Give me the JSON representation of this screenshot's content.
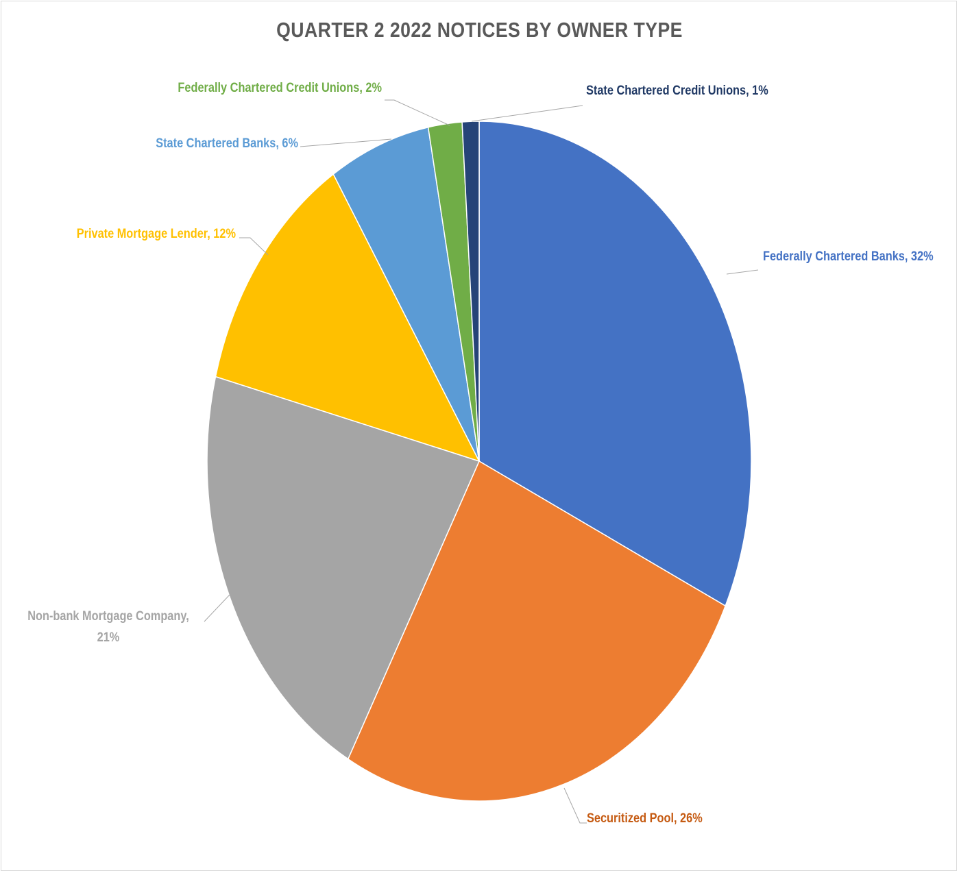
{
  "chart_data": {
    "type": "pie",
    "title": "QUARTER 2 2022 NOTICES BY OWNER TYPE",
    "slices": [
      {
        "label": "Federally Chartered Banks",
        "value": 32,
        "display": "Federally Chartered Banks, 32%",
        "color": "#4472C4",
        "label_color": "#4472C4"
      },
      {
        "label": "Securitized Pool",
        "value": 26,
        "display": "Securitized Pool, 26%",
        "color": "#ED7D31",
        "label_color": "#C55A11"
      },
      {
        "label": "Non-bank Mortgage Company",
        "value": 21,
        "display": "Non-bank Mortgage Company, 21%",
        "display_lines": [
          "Non-bank Mortgage Company,",
          "21%"
        ],
        "color": "#A5A5A5",
        "label_color": "#A5A5A5"
      },
      {
        "label": "Private Mortgage Lender",
        "value": 12,
        "display": "Private Mortgage Lender, 12%",
        "color": "#FFC000",
        "label_color": "#FFC000"
      },
      {
        "label": "State Chartered Banks",
        "value": 6,
        "display": "State Chartered Banks, 6%",
        "color": "#5B9BD5",
        "label_color": "#5B9BD5"
      },
      {
        "label": "Federally Chartered Credit Unions",
        "value": 2,
        "display": "Federally Chartered Credit Unions, 2%",
        "color": "#70AD47",
        "label_color": "#70AD47"
      },
      {
        "label": "State Chartered Credit Unions",
        "value": 1,
        "display": "State Chartered Credit Unions, 1%",
        "color": "#264478",
        "label_color": "#1F3864"
      }
    ],
    "legend": "none",
    "data_labels": "outside with leader lines"
  }
}
